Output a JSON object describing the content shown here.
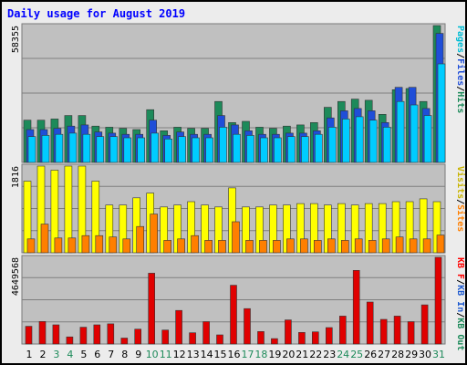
{
  "chart_data": [
    {
      "type": "bar",
      "title": "Daily usage for August 2019",
      "categories": [
        "1",
        "2",
        "3",
        "4",
        "5",
        "6",
        "7",
        "8",
        "9",
        "10",
        "11",
        "12",
        "13",
        "14",
        "15",
        "16",
        "17",
        "18",
        "19",
        "20",
        "21",
        "22",
        "23",
        "24",
        "25",
        "26",
        "27",
        "28",
        "29",
        "30",
        "31"
      ],
      "weekend_days": [
        "3",
        "4",
        "10",
        "11",
        "17",
        "18",
        "24",
        "25",
        "31"
      ],
      "ymax_label": "58355",
      "right_labels": [
        {
          "text": "Pages",
          "color": "#00bcd4"
        },
        {
          "text": "/",
          "color": "#000000"
        },
        {
          "text": "Files",
          "color": "#1f4ed8"
        },
        {
          "text": "/",
          "color": "#000000"
        },
        {
          "text": "Hits",
          "color": "#1d8a5a"
        }
      ],
      "series": [
        {
          "name": "Hits",
          "color": "#1d8a5a",
          "values": [
            18000,
            18000,
            18500,
            20000,
            20000,
            15500,
            15000,
            14500,
            14000,
            22500,
            13500,
            15000,
            14500,
            14500,
            26000,
            17000,
            17500,
            15000,
            14500,
            15500,
            16000,
            17000,
            23500,
            26000,
            27000,
            26500,
            20500,
            31000,
            31500,
            26000,
            58355
          ]
        },
        {
          "name": "Files",
          "color": "#1f4ed8",
          "values": [
            14000,
            14000,
            14500,
            15500,
            16000,
            13000,
            12500,
            12000,
            12000,
            18000,
            11500,
            13000,
            12000,
            12000,
            20000,
            16000,
            13500,
            12000,
            12000,
            12500,
            12500,
            13500,
            19000,
            22000,
            23000,
            22000,
            17000,
            32000,
            32000,
            23000,
            55000
          ]
        },
        {
          "name": "Pages",
          "color": "#00ccff",
          "values": [
            11000,
            11500,
            12000,
            12500,
            12000,
            11000,
            11000,
            10500,
            10500,
            12500,
            10000,
            11000,
            10500,
            10500,
            15000,
            12000,
            11500,
            10500,
            10500,
            11000,
            11000,
            12000,
            15000,
            18500,
            19500,
            18000,
            15000,
            26000,
            24500,
            20000,
            42000
          ]
        }
      ],
      "group2": {
        "ymax_label": "1816",
        "right_labels": [
          {
            "text": "Visits",
            "color": "#c8b400"
          },
          {
            "text": "/",
            "color": "#000000"
          },
          {
            "text": "Sites",
            "color": "#ff7f00"
          }
        ],
        "series": [
          {
            "name": "Visits",
            "color": "#ffff00",
            "values": [
              1500,
              1816,
              1730,
              1816,
              1816,
              1500,
              1000,
              1000,
              1150,
              1250,
              960,
              1000,
              1070,
              1000,
              960,
              1360,
              960,
              960,
              1000,
              1000,
              1030,
              1030,
              1000,
              1030,
              1000,
              1030,
              1030,
              1070,
              1070,
              1130,
              1070
            ]
          },
          {
            "name": "Sites",
            "color": "#ff7f00",
            "values": [
              290,
              600,
              310,
              310,
              360,
              360,
              330,
              290,
              550,
              810,
              260,
              290,
              360,
              260,
              260,
              650,
              260,
              260,
              260,
              290,
              290,
              260,
              290,
              260,
              290,
              260,
              290,
              330,
              290,
              290,
              370
            ]
          }
        ]
      },
      "group3": {
        "ymax_label": "4649568",
        "right_labels": [
          {
            "text": "KB F",
            "color": "#ff0000"
          },
          {
            "text": "/",
            "color": "#000000"
          },
          {
            "text": "KB In",
            "color": "#1f5bd0"
          },
          {
            "text": "/",
            "color": "#000000"
          },
          {
            "text": "KB Out",
            "color": "#1d8a5a"
          }
        ],
        "series": [
          {
            "name": "KB F",
            "color": "#e00000",
            "values": [
              950000,
              1210000,
              1030000,
              380000,
              900000,
              1030000,
              1080000,
              320000,
              800000,
              3800000,
              750000,
              1800000,
              600000,
              1200000,
              490000,
              3150000,
              1900000,
              670000,
              290000,
              1290000,
              620000,
              650000,
              880000,
              1500000,
              3950000,
              2250000,
              1320000,
              1500000,
              1200000,
              2100000,
              4649568
            ]
          }
        ]
      }
    }
  ]
}
